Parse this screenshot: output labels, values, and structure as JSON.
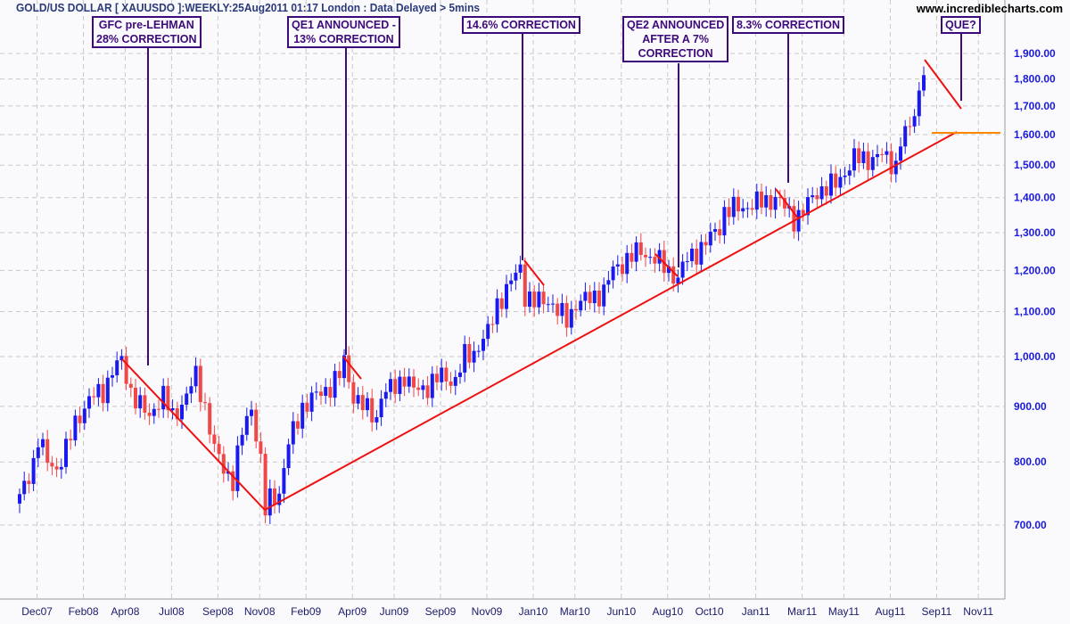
{
  "header": {
    "title": "GOLD/US DOLLAR [ XAUUSDO ]:WEEKLY:25Aug2011 01:17 London : Data Delayed > 5mins",
    "site": "www.incrediblecharts.com"
  },
  "annotations": [
    {
      "text": [
        "GFC pre-LEHMAN",
        "28% CORRECTION"
      ]
    },
    {
      "text": [
        "QE1 ANNOUNCED -",
        "13% CORRECTION"
      ]
    },
    {
      "text": [
        "14.6% CORRECTION"
      ]
    },
    {
      "text": [
        "QE2 ANNOUNCED",
        "AFTER A 7%",
        "CORRECTION"
      ]
    },
    {
      "text": [
        "8.3% CORRECTION"
      ]
    },
    {
      "text": [
        "QUE?"
      ]
    }
  ],
  "chart_data": {
    "type": "candlestick",
    "title": "GOLD/US DOLLAR [ XAUUSDO ]:WEEKLY",
    "yscale": "log",
    "ylim": [
      640,
      2000
    ],
    "yticks": [
      700,
      800,
      900,
      1000,
      1100,
      1200,
      1300,
      1400,
      1500,
      1600,
      1700,
      1800,
      1900
    ],
    "ytick_labels": [
      "700.00",
      "800.00",
      "900.00",
      "1,000.00",
      "1,100.00",
      "1,200.00",
      "1,300.00",
      "1,400.00",
      "1,500.00",
      "1,600.00",
      "1,700.00",
      "1,800.00",
      "1,900.00"
    ],
    "xtick_labels": [
      "Dec07",
      "Feb08",
      "Apr08",
      "Jul08",
      "Sep08",
      "Nov08",
      "Feb09",
      "Apr09",
      "Jun09",
      "Sep09",
      "Nov09",
      "Jan10",
      "Mar10",
      "Jun10",
      "Aug10",
      "Oct10",
      "Jan11",
      "Mar11",
      "May11",
      "Aug11",
      "Sep11",
      "Nov11"
    ],
    "xtick_weeks": [
      8,
      18,
      27,
      37,
      47,
      56,
      66,
      76,
      85,
      95,
      105,
      115,
      124,
      134,
      144,
      153,
      163,
      173,
      182,
      192,
      202,
      211
    ],
    "weekly_close_anchors": [
      [
        0,
        740
      ],
      [
        3,
        800
      ],
      [
        4,
        840
      ],
      [
        6,
        800
      ],
      [
        8,
        790
      ],
      [
        10,
        820
      ],
      [
        12,
        870
      ],
      [
        14,
        900
      ],
      [
        16,
        920
      ],
      [
        18,
        930
      ],
      [
        20,
        970
      ],
      [
        22,
        990
      ],
      [
        24,
        930
      ],
      [
        26,
        900
      ],
      [
        28,
        880
      ],
      [
        29,
        900
      ],
      [
        31,
        920
      ],
      [
        33,
        880
      ],
      [
        36,
        920
      ],
      [
        38,
        960
      ],
      [
        40,
        900
      ],
      [
        42,
        820
      ],
      [
        44,
        790
      ],
      [
        46,
        770
      ],
      [
        48,
        850
      ],
      [
        50,
        900
      ],
      [
        52,
        800
      ],
      [
        53,
        720
      ],
      [
        54,
        740
      ],
      [
        56,
        750
      ],
      [
        58,
        830
      ],
      [
        61,
        900
      ],
      [
        64,
        920
      ],
      [
        67,
        940
      ],
      [
        69,
        960
      ],
      [
        70,
        990
      ],
      [
        72,
        920
      ],
      [
        74,
        900
      ],
      [
        77,
        880
      ],
      [
        78,
        920
      ],
      [
        81,
        940
      ],
      [
        83,
        960
      ],
      [
        85,
        930
      ],
      [
        88,
        940
      ],
      [
        91,
        960
      ],
      [
        94,
        950
      ],
      [
        96,
        1000
      ],
      [
        98,
        1010
      ],
      [
        101,
        1050
      ],
      [
        103,
        1120
      ],
      [
        105,
        1150
      ],
      [
        108,
        1210
      ],
      [
        109,
        1140
      ],
      [
        111,
        1120
      ],
      [
        114,
        1130
      ],
      [
        116,
        1100
      ],
      [
        118,
        1080
      ],
      [
        120,
        1120
      ],
      [
        123,
        1130
      ],
      [
        126,
        1150
      ],
      [
        128,
        1200
      ],
      [
        131,
        1230
      ],
      [
        134,
        1250
      ],
      [
        137,
        1230
      ],
      [
        140,
        1200
      ],
      [
        142,
        1180
      ],
      [
        144,
        1230
      ],
      [
        148,
        1270
      ],
      [
        151,
        1320
      ],
      [
        152,
        1360
      ],
      [
        155,
        1370
      ],
      [
        158,
        1380
      ],
      [
        161,
        1390
      ],
      [
        163,
        1400
      ],
      [
        165,
        1370
      ],
      [
        167,
        1340
      ],
      [
        169,
        1360
      ],
      [
        172,
        1420
      ],
      [
        176,
        1440
      ],
      [
        178,
        1480
      ],
      [
        180,
        1520
      ],
      [
        183,
        1520
      ],
      [
        186,
        1530
      ],
      [
        189,
        1500
      ],
      [
        190,
        1580
      ],
      [
        192,
        1620
      ],
      [
        194,
        1750
      ],
      [
        195,
        1850
      ]
    ],
    "trendlines": [
      {
        "name": "support",
        "from": [
          53,
          720
        ],
        "to": [
          202,
          1600
        ]
      },
      {
        "name": "que-projection",
        "from": [
          195,
          1870
        ],
        "to": [
          203,
          1695
        ]
      },
      {
        "name": "level",
        "value": 1600
      }
    ]
  }
}
